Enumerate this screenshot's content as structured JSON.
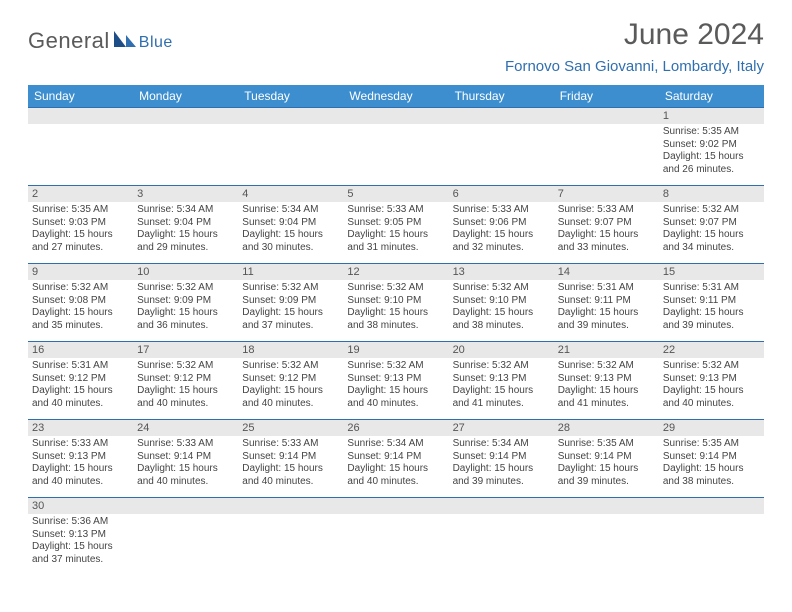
{
  "brand": {
    "name_main": "General",
    "name_sub": "Blue"
  },
  "title": {
    "month": "June 2024",
    "location": "Fornovo San Giovanni, Lombardy, Italy"
  },
  "colors": {
    "header_bg": "#3c8ecf",
    "accent": "#2f6fb0",
    "daynum_bg": "#e8e8e8",
    "text": "#444444"
  },
  "weekdays": [
    "Sunday",
    "Monday",
    "Tuesday",
    "Wednesday",
    "Thursday",
    "Friday",
    "Saturday"
  ],
  "weeks": [
    [
      null,
      null,
      null,
      null,
      null,
      null,
      {
        "n": "1",
        "sr": "5:35 AM",
        "ss": "9:02 PM",
        "dl": "15 hours and 26 minutes."
      }
    ],
    [
      {
        "n": "2",
        "sr": "5:35 AM",
        "ss": "9:03 PM",
        "dl": "15 hours and 27 minutes."
      },
      {
        "n": "3",
        "sr": "5:34 AM",
        "ss": "9:04 PM",
        "dl": "15 hours and 29 minutes."
      },
      {
        "n": "4",
        "sr": "5:34 AM",
        "ss": "9:04 PM",
        "dl": "15 hours and 30 minutes."
      },
      {
        "n": "5",
        "sr": "5:33 AM",
        "ss": "9:05 PM",
        "dl": "15 hours and 31 minutes."
      },
      {
        "n": "6",
        "sr": "5:33 AM",
        "ss": "9:06 PM",
        "dl": "15 hours and 32 minutes."
      },
      {
        "n": "7",
        "sr": "5:33 AM",
        "ss": "9:07 PM",
        "dl": "15 hours and 33 minutes."
      },
      {
        "n": "8",
        "sr": "5:32 AM",
        "ss": "9:07 PM",
        "dl": "15 hours and 34 minutes."
      }
    ],
    [
      {
        "n": "9",
        "sr": "5:32 AM",
        "ss": "9:08 PM",
        "dl": "15 hours and 35 minutes."
      },
      {
        "n": "10",
        "sr": "5:32 AM",
        "ss": "9:09 PM",
        "dl": "15 hours and 36 minutes."
      },
      {
        "n": "11",
        "sr": "5:32 AM",
        "ss": "9:09 PM",
        "dl": "15 hours and 37 minutes."
      },
      {
        "n": "12",
        "sr": "5:32 AM",
        "ss": "9:10 PM",
        "dl": "15 hours and 38 minutes."
      },
      {
        "n": "13",
        "sr": "5:32 AM",
        "ss": "9:10 PM",
        "dl": "15 hours and 38 minutes."
      },
      {
        "n": "14",
        "sr": "5:31 AM",
        "ss": "9:11 PM",
        "dl": "15 hours and 39 minutes."
      },
      {
        "n": "15",
        "sr": "5:31 AM",
        "ss": "9:11 PM",
        "dl": "15 hours and 39 minutes."
      }
    ],
    [
      {
        "n": "16",
        "sr": "5:31 AM",
        "ss": "9:12 PM",
        "dl": "15 hours and 40 minutes."
      },
      {
        "n": "17",
        "sr": "5:32 AM",
        "ss": "9:12 PM",
        "dl": "15 hours and 40 minutes."
      },
      {
        "n": "18",
        "sr": "5:32 AM",
        "ss": "9:12 PM",
        "dl": "15 hours and 40 minutes."
      },
      {
        "n": "19",
        "sr": "5:32 AM",
        "ss": "9:13 PM",
        "dl": "15 hours and 40 minutes."
      },
      {
        "n": "20",
        "sr": "5:32 AM",
        "ss": "9:13 PM",
        "dl": "15 hours and 41 minutes."
      },
      {
        "n": "21",
        "sr": "5:32 AM",
        "ss": "9:13 PM",
        "dl": "15 hours and 41 minutes."
      },
      {
        "n": "22",
        "sr": "5:32 AM",
        "ss": "9:13 PM",
        "dl": "15 hours and 40 minutes."
      }
    ],
    [
      {
        "n": "23",
        "sr": "5:33 AM",
        "ss": "9:13 PM",
        "dl": "15 hours and 40 minutes."
      },
      {
        "n": "24",
        "sr": "5:33 AM",
        "ss": "9:14 PM",
        "dl": "15 hours and 40 minutes."
      },
      {
        "n": "25",
        "sr": "5:33 AM",
        "ss": "9:14 PM",
        "dl": "15 hours and 40 minutes."
      },
      {
        "n": "26",
        "sr": "5:34 AM",
        "ss": "9:14 PM",
        "dl": "15 hours and 40 minutes."
      },
      {
        "n": "27",
        "sr": "5:34 AM",
        "ss": "9:14 PM",
        "dl": "15 hours and 39 minutes."
      },
      {
        "n": "28",
        "sr": "5:35 AM",
        "ss": "9:14 PM",
        "dl": "15 hours and 39 minutes."
      },
      {
        "n": "29",
        "sr": "5:35 AM",
        "ss": "9:14 PM",
        "dl": "15 hours and 38 minutes."
      }
    ],
    [
      {
        "n": "30",
        "sr": "5:36 AM",
        "ss": "9:13 PM",
        "dl": "15 hours and 37 minutes."
      },
      null,
      null,
      null,
      null,
      null,
      null
    ]
  ],
  "labels": {
    "sunrise": "Sunrise:",
    "sunset": "Sunset:",
    "daylight": "Daylight:"
  }
}
